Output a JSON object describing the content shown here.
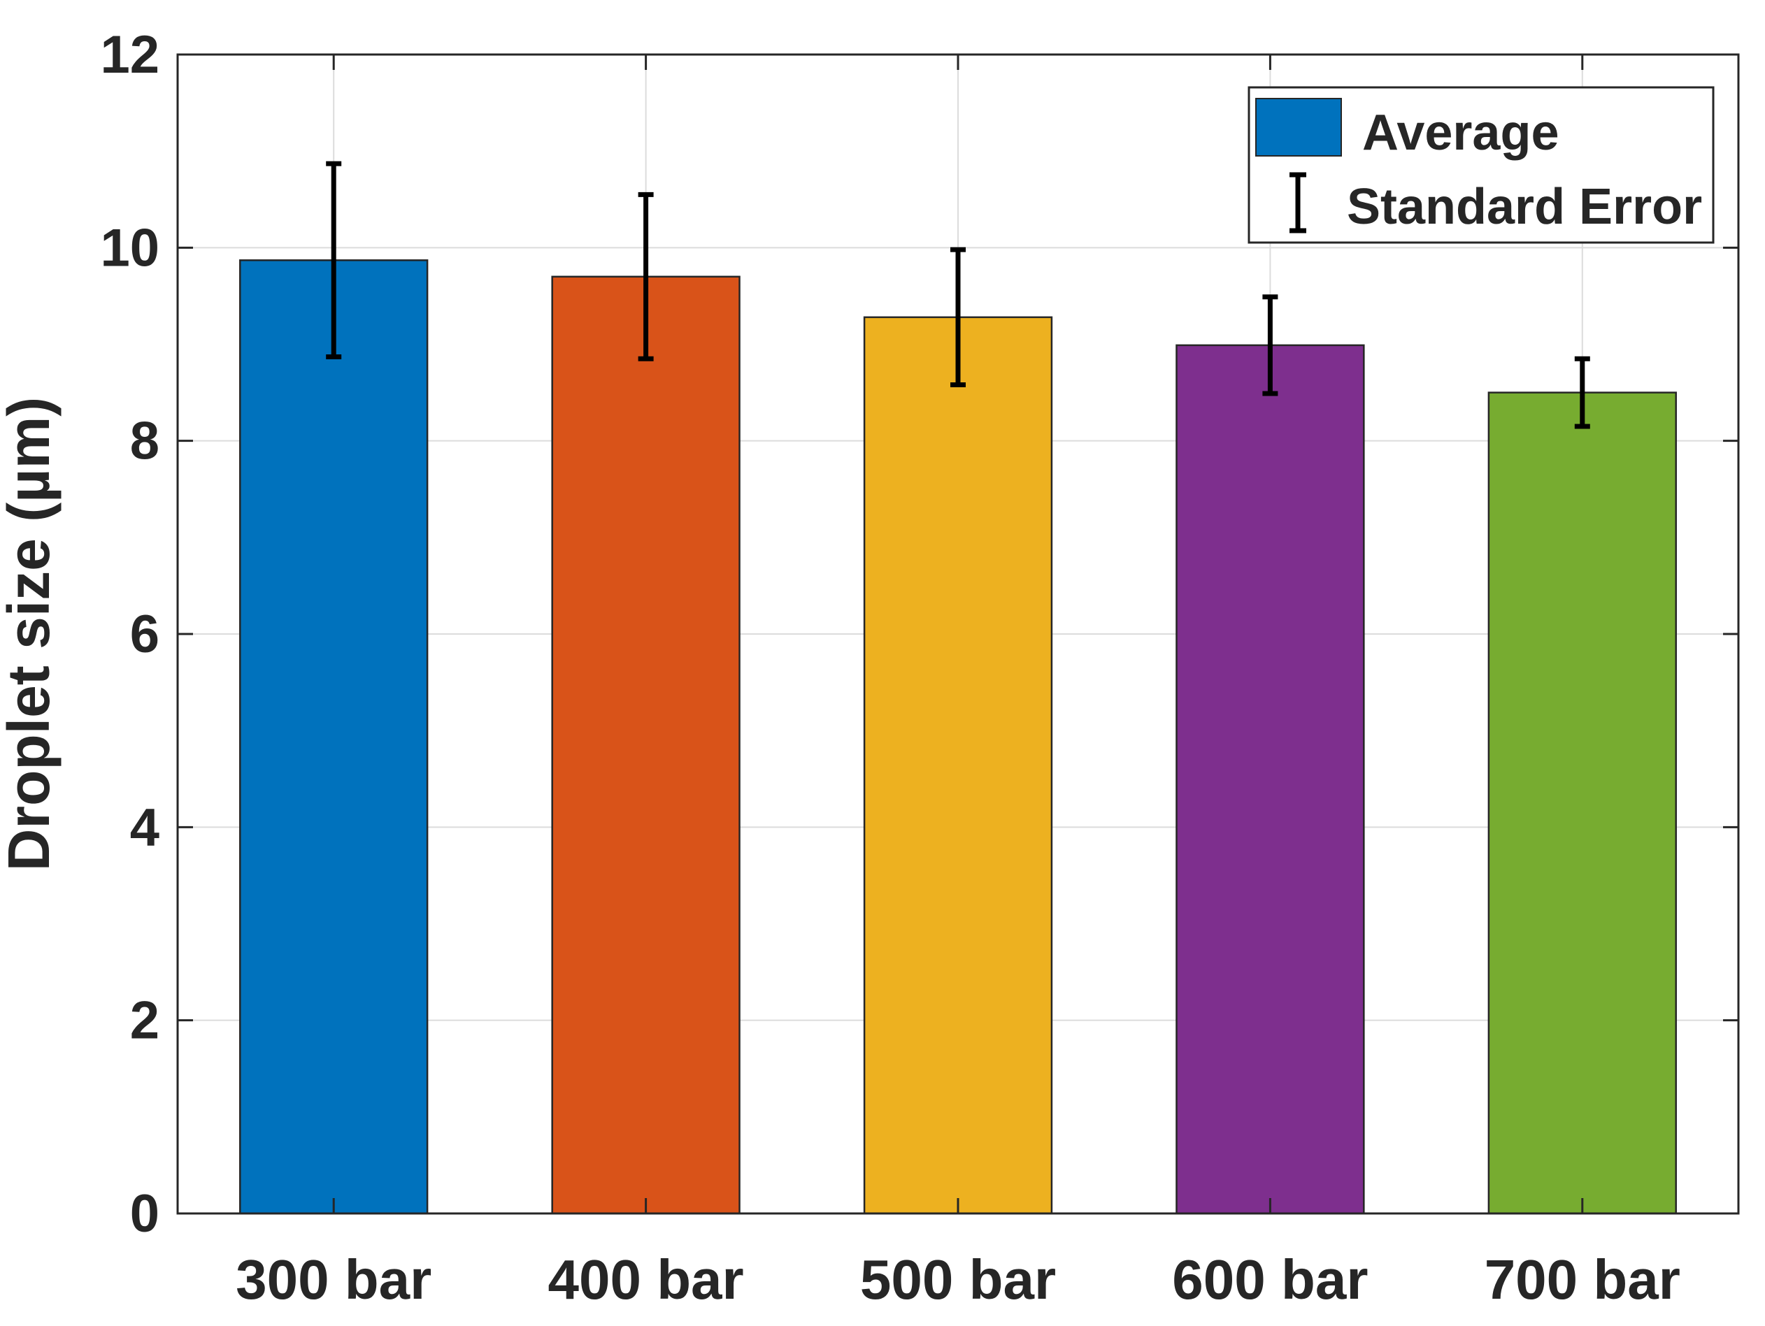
{
  "chart_data": {
    "type": "bar",
    "title": "",
    "xlabel": "",
    "ylabel": "Droplet size (µm)",
    "ylim": [
      0,
      12
    ],
    "yticks": [
      0,
      2,
      4,
      6,
      8,
      10,
      12
    ],
    "grid": true,
    "categories": [
      "300 bar",
      "400 bar",
      "500 bar",
      "600 bar",
      "700 bar"
    ],
    "values": [
      9.87,
      9.7,
      9.28,
      8.99,
      8.5
    ],
    "error": [
      1.0,
      0.85,
      0.7,
      0.5,
      0.35
    ],
    "colors": [
      "#0072BD",
      "#D95319",
      "#EDB120",
      "#7E2F8E",
      "#77AC30"
    ],
    "legend": {
      "position": "top-right",
      "entries": [
        {
          "label": "Average",
          "symbol": "bar",
          "color": "#0072BD"
        },
        {
          "label": "Standard Error",
          "symbol": "errorbar",
          "color": "#000000"
        }
      ]
    }
  }
}
